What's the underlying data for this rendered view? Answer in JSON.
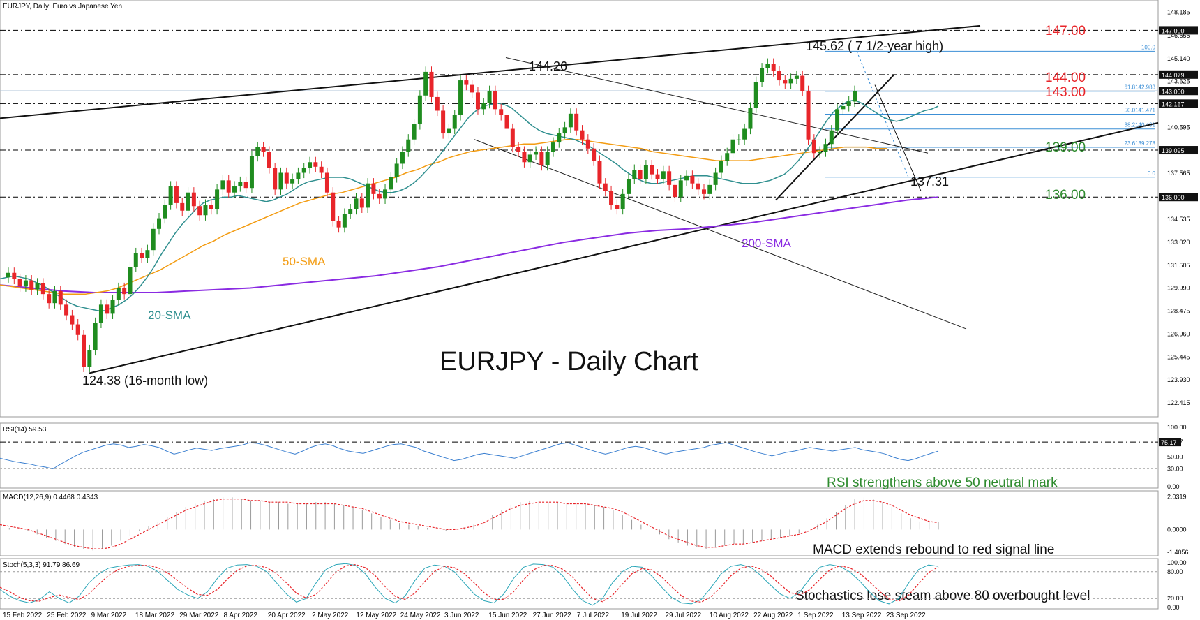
{
  "colors": {
    "bull": "#1f8c1f",
    "bear": "#e8252a",
    "sma20": "#2f8f8f",
    "sma50": "#f39c12",
    "sma200": "#8a2be2",
    "fib": "#3c8fd6",
    "red_label": "#e8252a",
    "green_label": "#2e8b2e",
    "signal": "#e8252a",
    "osc": "#3a7fd0"
  },
  "chart_data": [
    {
      "type": "candlestick",
      "title": "EURJPY, Daily: Euro vs Japanese Yen",
      "big_title": "EURJPY - Daily Chart",
      "ylim": [
        121.5,
        149.0
      ],
      "xlim": [
        0,
        176
      ],
      "y_ticks": [
        "148.185",
        "146.655",
        "145.140",
        "143.625",
        "142.110",
        "140.595",
        "139.095",
        "137.565",
        "136.050",
        "134.535",
        "133.020",
        "131.505",
        "129.990",
        "128.475",
        "126.960",
        "125.445",
        "123.930",
        "122.415"
      ],
      "price_boxes": [
        "147.000",
        "144.079",
        "143.000",
        "142.167",
        "139.095",
        "136.000"
      ],
      "x_labels": [
        "15 Feb 2022",
        "25 Feb 2022",
        "9 Mar 2022",
        "18 Mar 2022",
        "29 Mar 2022",
        "8 Apr 2022",
        "20 Apr 2022",
        "2 May 2022",
        "12 May 2022",
        "24 May 2022",
        "3 Jun 2022",
        "15 Jun 2022",
        "27 Jun 2022",
        "7 Jul 2022",
        "19 Jul 2022",
        "29 Jul 2022",
        "10 Aug 2022",
        "22 Aug 2022",
        "1 Sep 2022",
        "13 Sep 2022",
        "23 Sep 2022"
      ],
      "closes": [
        131.0,
        130.6,
        130.1,
        130.5,
        129.9,
        130.3,
        129.6,
        129.0,
        129.8,
        128.9,
        128.2,
        127.6,
        126.9,
        124.8,
        125.9,
        127.7,
        128.9,
        128.3,
        129.2,
        130.0,
        129.6,
        131.4,
        132.3,
        132.0,
        132.5,
        133.9,
        134.6,
        135.5,
        136.7,
        135.6,
        135.1,
        136.3,
        135.4,
        134.8,
        135.5,
        135.2,
        136.5,
        137.1,
        136.3,
        136.7,
        137.0,
        136.6,
        138.7,
        139.3,
        139.0,
        137.9,
        136.5,
        137.6,
        136.9,
        137.2,
        137.6,
        137.9,
        138.3,
        138.0,
        137.6,
        136.3,
        134.4,
        134.0,
        134.9,
        135.2,
        135.9,
        135.3,
        136.9,
        136.2,
        135.9,
        136.5,
        137.3,
        138.2,
        139.0,
        139.8,
        140.8,
        142.7,
        144.26,
        142.6,
        141.7,
        140.2,
        140.5,
        141.4,
        143.7,
        143.4,
        142.9,
        141.8,
        142.2,
        143.0,
        141.8,
        141.4,
        140.5,
        139.3,
        139.0,
        138.3,
        138.8,
        139.0,
        138.1,
        139.0,
        139.6,
        140.2,
        140.6,
        141.5,
        140.4,
        139.8,
        139.2,
        138.4,
        136.9,
        136.4,
        135.5,
        135.2,
        136.2,
        137.2,
        137.8,
        137.2,
        138.1,
        137.5,
        137.2,
        137.7,
        136.8,
        136.0,
        137.1,
        137.4,
        136.9,
        136.5,
        136.2,
        136.8,
        137.6,
        138.4,
        138.9,
        139.8,
        139.8,
        140.5,
        141.9,
        143.6,
        144.5,
        144.8,
        144.3,
        143.7,
        143.5,
        143.8,
        144.0,
        143.0,
        139.8,
        138.9,
        139.0,
        139.5,
        140.4,
        141.8,
        142.0,
        142.3,
        143.0
      ],
      "ma20": [
        130.6,
        130.7,
        130.8,
        130.7,
        130.6,
        130.4,
        130.2,
        129.9,
        129.6,
        129.3,
        129.0,
        128.8,
        128.7,
        128.6,
        128.5,
        128.5,
        128.7,
        128.9,
        129.2,
        129.6,
        130.1,
        130.7,
        131.4,
        132.2,
        132.9,
        133.6,
        134.2,
        134.7,
        135.2,
        135.6,
        135.8,
        135.9,
        136.0,
        136.0,
        136.1,
        136.0,
        135.9,
        135.8,
        135.7,
        135.8,
        136.0,
        136.2,
        136.5,
        136.8,
        137.0,
        137.1,
        137.2,
        137.3,
        137.3,
        137.3,
        137.2,
        137.0,
        136.8,
        136.6,
        136.4,
        136.3,
        136.3,
        136.4,
        136.6,
        136.9,
        137.3,
        137.8,
        138.3,
        138.9,
        139.5,
        140.1,
        140.7,
        141.3,
        141.7,
        142.0,
        142.1,
        142.2,
        142.1,
        141.9,
        141.5,
        141.1,
        140.7,
        140.4,
        140.2,
        140.1,
        140.0,
        139.9,
        139.8,
        139.6,
        139.4,
        139.1,
        138.8,
        138.5,
        138.2,
        137.8,
        137.5,
        137.2,
        137.0,
        136.9,
        136.9,
        137.0,
        137.1,
        137.2,
        137.3,
        137.4,
        137.4,
        137.4,
        137.3,
        137.2,
        137.1,
        137.0,
        136.9,
        136.9,
        136.9,
        137.0,
        137.1,
        137.3,
        137.5,
        137.9,
        138.4,
        139.0,
        139.6,
        140.3,
        141.0,
        141.6,
        142.0,
        142.3,
        142.4,
        142.2,
        141.9,
        141.6,
        141.3,
        141.1,
        141.0,
        141.1,
        141.3,
        141.5,
        141.7,
        141.8,
        142.0
      ],
      "ma50": [
        130.2,
        130.1,
        130.0,
        129.9,
        129.8,
        129.7,
        129.6,
        129.6,
        129.6,
        129.7,
        129.8,
        130.0,
        130.3,
        130.6,
        130.9,
        131.2,
        131.6,
        132.0,
        132.4,
        132.8,
        133.1,
        133.5,
        133.8,
        134.1,
        134.4,
        134.7,
        135.0,
        135.3,
        135.6,
        135.8,
        136.0,
        136.2,
        136.3,
        136.5,
        136.7,
        136.9,
        137.1,
        137.3,
        137.6,
        137.8,
        138.1,
        138.3,
        138.6,
        138.8,
        139.0,
        139.1,
        139.2,
        139.3,
        139.4,
        139.5,
        139.5,
        139.6,
        139.7,
        139.8,
        139.8,
        139.7,
        139.6,
        139.5,
        139.4,
        139.3,
        139.2,
        139.0,
        138.9,
        138.8,
        138.7,
        138.6,
        138.5,
        138.4,
        138.4,
        138.4,
        138.4,
        138.5,
        138.6,
        138.7,
        138.8,
        138.9,
        139.0,
        139.1,
        139.2,
        139.3,
        139.3,
        139.3,
        139.2,
        139.2
      ],
      "ma200": [
        130.2,
        130.0,
        129.8,
        129.7,
        129.7,
        129.7,
        129.8,
        129.9,
        130.0,
        130.2,
        130.4,
        130.6,
        130.8,
        131.1,
        131.4,
        131.8,
        132.2,
        132.6,
        133.0,
        133.3,
        133.6,
        133.8,
        133.9,
        134.1,
        134.3,
        134.6,
        134.9,
        135.2,
        135.5,
        135.8,
        136.0
      ],
      "annotations": {
        "high_label": "145.62 ( 7 1/2-year high)",
        "peak_label": "144.26",
        "low_label": "124.38 (16-month low)",
        "swing_low_label": "137.31",
        "sma20_label": "20-SMA",
        "sma50_label": "50-SMA",
        "sma200_label": "200-SMA",
        "lvl_147": "147.00",
        "lvl_144": "144.00",
        "lvl_143": "143.00",
        "lvl_139": "139.00",
        "lvl_136": "136.00"
      },
      "fib_levels": [
        {
          "label": "100.0",
          "value": 145.62
        },
        {
          "label": "61.8142.983",
          "value": 142.98
        },
        {
          "label": "50.0141.471",
          "value": 141.47
        },
        {
          "label": "38.2140.491",
          "value": 140.49
        },
        {
          "label": "23.6139.278",
          "value": 139.28
        },
        {
          "label": "0.0",
          "value": 137.31
        }
      ]
    },
    {
      "type": "line",
      "title": "RSI(14) 59.53",
      "caption": "RSI strengthens above 50 neutral mark",
      "ylim": [
        0,
        100
      ],
      "y_ticks": [
        "100.00",
        "75.17",
        "50.00",
        "30.00",
        "0.00"
      ],
      "values": [
        48,
        45,
        42,
        40,
        38,
        35,
        33,
        30,
        38,
        45,
        52,
        58,
        62,
        66,
        70,
        72,
        70,
        66,
        68,
        71,
        69,
        66,
        60,
        55,
        58,
        62,
        65,
        63,
        61,
        64,
        66,
        68,
        70,
        74,
        73,
        70,
        66,
        62,
        58,
        55,
        60,
        66,
        70,
        72,
        69,
        64,
        60,
        58,
        56,
        60,
        64,
        68,
        71,
        72,
        69,
        66,
        60,
        56,
        52,
        48,
        44,
        46,
        50,
        54,
        56,
        54,
        52,
        50,
        48,
        52,
        56,
        60,
        64,
        68,
        72,
        74,
        70,
        66,
        62,
        58,
        55,
        58,
        62,
        66,
        68,
        66,
        62,
        58,
        55,
        58,
        60,
        62,
        64,
        66,
        70,
        72,
        74,
        70,
        66,
        62,
        58,
        55,
        52,
        55,
        58,
        60,
        63,
        66,
        64,
        62,
        60,
        62,
        64,
        66,
        62,
        60,
        58,
        55,
        50,
        46,
        44,
        47,
        52,
        56,
        60
      ]
    },
    {
      "type": "bar",
      "title": "MACD(12,26,9) 0.4468 0.4343",
      "caption": "MACD extends rebound to red signal line",
      "ylim": [
        -1.5,
        2.1
      ],
      "y_ticks": [
        "2.0319",
        "0.0000",
        "-1.4056"
      ],
      "values": [
        0.2,
        0.1,
        0.0,
        -0.1,
        -0.3,
        -0.5,
        -0.7,
        -0.9,
        -1.1,
        -1.2,
        -1.3,
        -1.2,
        -1.0,
        -0.7,
        -0.4,
        -0.1,
        0.2,
        0.5,
        0.8,
        1.1,
        1.4,
        1.6,
        1.8,
        1.9,
        2.0,
        2.0,
        1.9,
        1.8,
        1.8,
        1.7,
        1.7,
        1.6,
        1.6,
        1.6,
        1.7,
        1.7,
        1.6,
        1.5,
        1.4,
        1.2,
        1.0,
        0.8,
        0.6,
        0.4,
        0.3,
        0.2,
        0.1,
        0.0,
        -0.1,
        0.0,
        0.1,
        0.3,
        0.6,
        0.9,
        1.2,
        1.5,
        1.7,
        1.8,
        1.8,
        1.7,
        1.7,
        1.6,
        1.6,
        1.6,
        1.5,
        1.4,
        1.2,
        0.9,
        0.6,
        0.3,
        0.0,
        -0.3,
        -0.6,
        -0.8,
        -1.0,
        -1.1,
        -1.2,
        -1.1,
        -1.0,
        -0.9,
        -0.9,
        -0.8,
        -0.7,
        -0.6,
        -0.5,
        -0.4,
        -0.2,
        0.0,
        0.3,
        0.7,
        1.1,
        1.5,
        1.9,
        2.0,
        1.9,
        1.7,
        1.4,
        1.0,
        0.7,
        0.5,
        0.45,
        0.45
      ],
      "signal": [
        0.3,
        0.2,
        0.1,
        0.0,
        -0.2,
        -0.4,
        -0.6,
        -0.8,
        -1.0,
        -1.1,
        -1.2,
        -1.2,
        -1.1,
        -0.9,
        -0.6,
        -0.3,
        0.0,
        0.3,
        0.6,
        0.9,
        1.2,
        1.4,
        1.6,
        1.8,
        1.9,
        1.9,
        1.9,
        1.8,
        1.8,
        1.7,
        1.7,
        1.7,
        1.6,
        1.6,
        1.6,
        1.6,
        1.6,
        1.5,
        1.4,
        1.3,
        1.1,
        0.9,
        0.7,
        0.5,
        0.4,
        0.3,
        0.2,
        0.1,
        0.0,
        0.0,
        0.1,
        0.2,
        0.4,
        0.7,
        1.0,
        1.3,
        1.5,
        1.6,
        1.7,
        1.7,
        1.7,
        1.6,
        1.6,
        1.6,
        1.5,
        1.4,
        1.3,
        1.1,
        0.8,
        0.5,
        0.2,
        -0.1,
        -0.4,
        -0.6,
        -0.8,
        -1.0,
        -1.1,
        -1.1,
        -1.0,
        -0.9,
        -0.9,
        -0.8,
        -0.7,
        -0.6,
        -0.5,
        -0.4,
        -0.3,
        -0.1,
        0.2,
        0.5,
        0.9,
        1.3,
        1.6,
        1.8,
        1.8,
        1.7,
        1.5,
        1.2,
        0.9,
        0.7,
        0.5,
        0.43
      ]
    },
    {
      "type": "line",
      "title": "Stoch(5,3,3) 91.79 86.69",
      "caption": "Stochastics lose steam above 80 overbought level",
      "ylim": [
        0,
        100
      ],
      "y_ticks": [
        "100.00",
        "80.00",
        "20.00",
        "0.00"
      ],
      "main": [
        40,
        25,
        15,
        10,
        18,
        35,
        20,
        10,
        25,
        55,
        75,
        88,
        92,
        95,
        96,
        92,
        80,
        60,
        40,
        28,
        20,
        35,
        65,
        88,
        95,
        96,
        92,
        80,
        55,
        30,
        12,
        20,
        55,
        85,
        96,
        98,
        94,
        75,
        45,
        20,
        10,
        25,
        60,
        88,
        95,
        92,
        80,
        55,
        30,
        15,
        10,
        30,
        65,
        90,
        97,
        96,
        90,
        70,
        40,
        15,
        5,
        20,
        55,
        80,
        92,
        90,
        70,
        45,
        22,
        10,
        8,
        18,
        45,
        75,
        92,
        96,
        90,
        72,
        50,
        30,
        20,
        35,
        65,
        90,
        96,
        92,
        80,
        60,
        35,
        15,
        8,
        20,
        55,
        85,
        95,
        92
      ],
      "signal": [
        45,
        35,
        22,
        15,
        14,
        22,
        28,
        22,
        18,
        30,
        52,
        72,
        85,
        92,
        94,
        94,
        89,
        77,
        60,
        43,
        29,
        27,
        40,
        63,
        83,
        93,
        94,
        89,
        76,
        55,
        32,
        21,
        29,
        53,
        79,
        93,
        96,
        89,
        71,
        46,
        25,
        18,
        32,
        58,
        81,
        92,
        89,
        76,
        55,
        33,
        18,
        18,
        35,
        62,
        84,
        94,
        94,
        85,
        67,
        42,
        20,
        13,
        27,
        52,
        76,
        87,
        84,
        68,
        46,
        26,
        14,
        12,
        24,
        46,
        71,
        88,
        93,
        86,
        71,
        51,
        33,
        28,
        40,
        63,
        84,
        93,
        89,
        77,
        58,
        37,
        19,
        14,
        28,
        53,
        78,
        91
      ]
    }
  ]
}
